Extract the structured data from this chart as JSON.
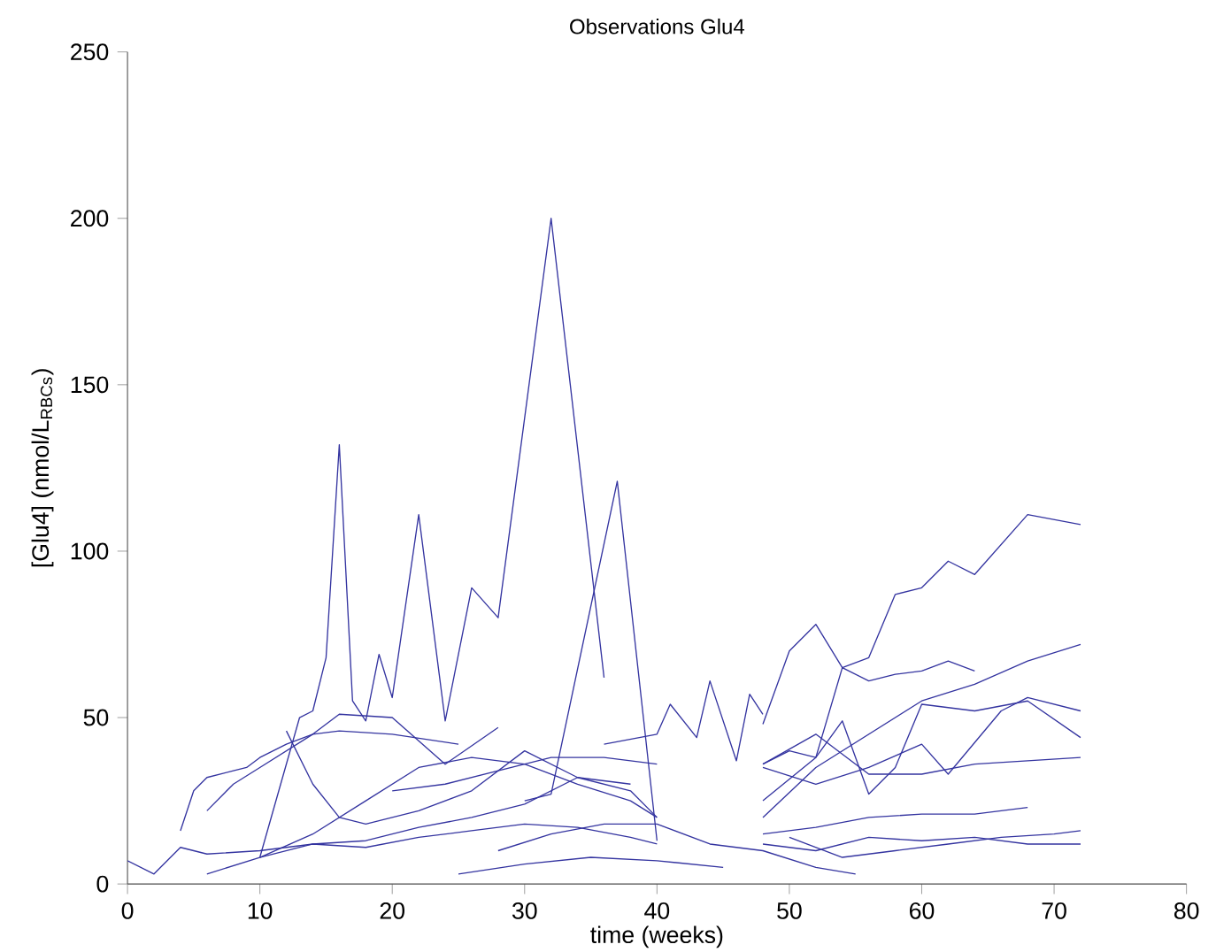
{
  "chart_data": {
    "type": "line",
    "title": "Observations Glu4",
    "xlabel": "time (weeks)",
    "ylabel": "[Glu4] (nmol/L$_{RBCs}$)",
    "xlim": [
      0,
      80
    ],
    "ylim": [
      0,
      250
    ],
    "xticks": [
      0,
      10,
      20,
      30,
      40,
      50,
      60,
      70,
      80
    ],
    "yticks": [
      0,
      50,
      100,
      150,
      200,
      250
    ],
    "line_style": "solid",
    "series": [
      {
        "color": "#3434a0",
        "x": [
          10,
          13,
          14,
          15,
          16,
          17,
          18,
          19,
          20,
          22,
          24,
          26,
          28,
          32,
          36
        ],
        "values": [
          8,
          50,
          52,
          68,
          132,
          55,
          49,
          69,
          56,
          111,
          49,
          89,
          80,
          200,
          62
        ]
      },
      {
        "color": "#3434a0",
        "x": [
          0,
          2,
          4,
          6,
          10,
          14,
          18,
          22,
          26,
          30,
          34,
          38,
          40
        ],
        "values": [
          7,
          3,
          11,
          9,
          10,
          12,
          11,
          14,
          16,
          18,
          17,
          14,
          12
        ]
      },
      {
        "color": "#3434a0",
        "x": [
          30,
          32,
          37,
          40
        ],
        "values": [
          25,
          27,
          121,
          13
        ]
      },
      {
        "color": "#3434a0",
        "x": [
          4,
          5,
          6,
          8,
          9,
          10,
          12,
          14,
          16,
          20,
          25
        ],
        "values": [
          16,
          28,
          32,
          34,
          35,
          38,
          42,
          45,
          46,
          45,
          42
        ]
      },
      {
        "color": "#3434a0",
        "x": [
          6,
          8,
          10,
          14,
          16,
          20,
          24,
          28
        ],
        "values": [
          22,
          30,
          35,
          45,
          51,
          50,
          36,
          47
        ]
      },
      {
        "color": "#3434a0",
        "x": [
          12,
          14,
          16,
          18,
          22,
          26,
          30,
          34,
          38
        ],
        "values": [
          46,
          30,
          20,
          18,
          22,
          28,
          40,
          32,
          30
        ]
      },
      {
        "color": "#3434a0",
        "x": [
          36,
          40,
          41,
          43,
          44,
          46,
          47,
          48
        ],
        "values": [
          42,
          45,
          54,
          44,
          61,
          37,
          57,
          51
        ]
      },
      {
        "color": "#3434a0",
        "x": [
          48,
          50,
          52,
          54,
          56,
          58,
          60,
          62,
          64,
          68,
          72
        ],
        "values": [
          48,
          70,
          78,
          65,
          68,
          87,
          89,
          97,
          93,
          111,
          108
        ]
      },
      {
        "color": "#3434a0",
        "x": [
          48,
          50,
          52,
          54,
          56,
          58,
          60,
          62,
          64
        ],
        "values": [
          36,
          40,
          38,
          65,
          61,
          63,
          64,
          67,
          64
        ]
      },
      {
        "color": "#3434a0",
        "x": [
          48,
          52,
          56,
          60,
          64,
          68,
          72
        ],
        "values": [
          20,
          35,
          45,
          55,
          60,
          67,
          72
        ]
      },
      {
        "color": "#3434a0",
        "x": [
          48,
          52,
          56,
          60,
          62,
          66,
          68,
          72
        ],
        "values": [
          35,
          30,
          35,
          42,
          33,
          52,
          56,
          52
        ]
      },
      {
        "color": "#3434a0",
        "x": [
          48,
          52,
          54,
          56,
          58,
          60,
          64,
          68,
          72
        ],
        "values": [
          25,
          38,
          49,
          27,
          35,
          54,
          52,
          55,
          44
        ]
      },
      {
        "color": "#3434a0",
        "x": [
          48,
          52,
          56,
          60,
          64,
          68,
          72
        ],
        "values": [
          36,
          45,
          33,
          33,
          36,
          37,
          38
        ]
      },
      {
        "color": "#3434a0",
        "x": [
          48,
          52,
          56,
          60,
          64,
          68
        ],
        "values": [
          15,
          17,
          20,
          21,
          21,
          23
        ]
      },
      {
        "color": "#3434a0",
        "x": [
          48,
          52,
          56,
          60,
          64,
          68,
          72
        ],
        "values": [
          12,
          10,
          14,
          13,
          14,
          12,
          12
        ]
      },
      {
        "color": "#3434a0",
        "x": [
          50,
          54,
          58,
          62,
          66,
          70,
          72
        ],
        "values": [
          14,
          8,
          10,
          12,
          14,
          15,
          16
        ]
      },
      {
        "color": "#3434a0",
        "x": [
          6,
          10,
          14,
          18,
          22,
          26,
          30,
          34,
          38,
          40
        ],
        "values": [
          3,
          8,
          12,
          13,
          17,
          20,
          24,
          32,
          28,
          20
        ]
      },
      {
        "color": "#3434a0",
        "x": [
          10,
          14,
          18,
          22,
          26,
          30,
          34,
          38,
          40
        ],
        "values": [
          8,
          15,
          25,
          35,
          38,
          36,
          30,
          25,
          20
        ]
      },
      {
        "color": "#3434a0",
        "x": [
          25,
          30,
          35,
          40,
          45
        ],
        "values": [
          3,
          6,
          8,
          7,
          5
        ]
      },
      {
        "color": "#3434a0",
        "x": [
          28,
          32,
          36,
          40,
          44,
          48,
          52,
          55
        ],
        "values": [
          10,
          15,
          18,
          18,
          12,
          10,
          5,
          3
        ]
      },
      {
        "color": "#3434a0",
        "x": [
          20,
          24,
          28,
          32,
          36,
          40
        ],
        "values": [
          28,
          30,
          34,
          38,
          38,
          36
        ]
      }
    ]
  }
}
